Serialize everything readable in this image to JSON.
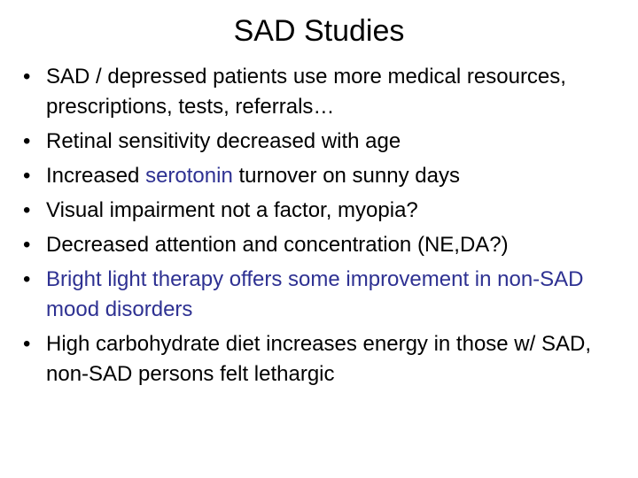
{
  "title": "SAD Studies",
  "bullets": [
    {
      "segments": [
        {
          "text": "SAD / depressed patients use more medical resources, prescriptions, tests, referrals…"
        }
      ]
    },
    {
      "segments": [
        {
          "text": "Retinal sensitivity decreased with age"
        }
      ]
    },
    {
      "segments": [
        {
          "text": "Increased "
        },
        {
          "text": "serotonin",
          "color": "#2e3192"
        },
        {
          "text": " turnover on sunny days"
        }
      ]
    },
    {
      "segments": [
        {
          "text": "Visual impairment not a factor, myopia?"
        }
      ]
    },
    {
      "segments": [
        {
          "text": "Decreased attention and concentration (NE,DA?)"
        }
      ]
    },
    {
      "segments": [
        {
          "text": "Bright light therapy offers some improvement in non-SAD mood disorders",
          "color": "#2e3192"
        }
      ]
    },
    {
      "segments": [
        {
          "text": "High carbohydrate diet increases energy in those w/ SAD, non-SAD persons felt lethargic"
        }
      ]
    }
  ]
}
